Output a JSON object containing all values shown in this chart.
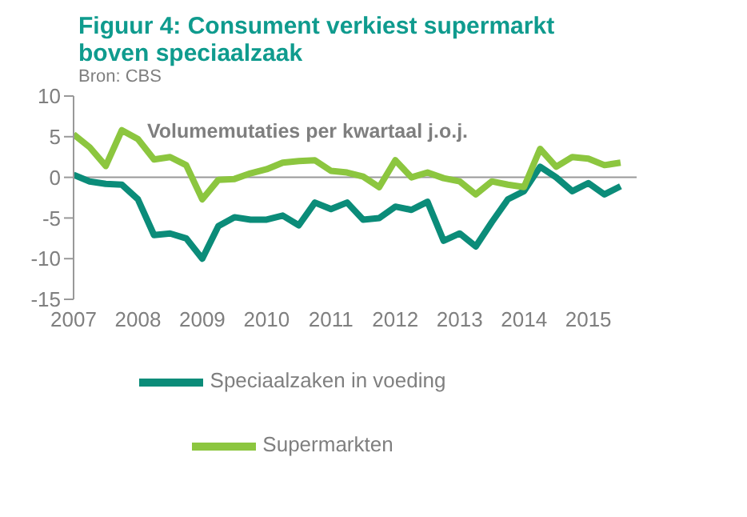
{
  "chart_data": {
    "type": "line",
    "title": "Figuur 4: Consument verkiest supermarkt boven speciaalzaak",
    "subtitle": "Volumemutaties per kwartaal j.o.j.",
    "annotations": [
      "Bron: CBS"
    ],
    "x": [
      2007,
      2007.25,
      2007.5,
      2007.75,
      2008,
      2008.25,
      2008.5,
      2008.75,
      2009,
      2009.25,
      2009.5,
      2009.75,
      2010,
      2010.25,
      2010.5,
      2010.75,
      2011,
      2011.25,
      2011.5,
      2011.75,
      2012,
      2012.25,
      2012.5,
      2012.75,
      2013,
      2013.25,
      2013.5,
      2013.75,
      2014,
      2014.25,
      2014.5,
      2014.75,
      2015,
      2015.25,
      2015.5
    ],
    "series": [
      {
        "name": "Speciaalzaken in voeding",
        "color": "#0b8c79",
        "values": [
          0.3,
          -0.5,
          -0.8,
          -0.9,
          -2.7,
          -7.1,
          -6.9,
          -7.5,
          -10,
          -6,
          -4.9,
          -5.2,
          -5.2,
          -4.7,
          -5.9,
          -3.1,
          -3.9,
          -3.1,
          -5.2,
          -5,
          -3.6,
          -4,
          -3,
          -7.8,
          -6.9,
          -8.5,
          -5.5,
          -2.7,
          -1.7,
          1.3,
          0,
          -1.7,
          -0.7,
          -2.1,
          -1.1
        ]
      },
      {
        "name": "Supermarkten",
        "color": "#8cc63f",
        "values": [
          5.3,
          3.7,
          1.4,
          5.8,
          4.7,
          2.2,
          2.5,
          1.5,
          -2.7,
          -0.3,
          -0.2,
          0.5,
          1,
          1.8,
          2,
          2.1,
          0.8,
          0.6,
          0.1,
          -1.2,
          2.1,
          0,
          0.6,
          -0.1,
          -0.5,
          -2.1,
          -0.5,
          -0.9,
          -1.2,
          3.5,
          1.3,
          2.5,
          2.3,
          1.5,
          1.8
        ]
      }
    ],
    "xlim": [
      2007,
      2015.75
    ],
    "xticks": [
      2007,
      2008,
      2009,
      2010,
      2011,
      2012,
      2013,
      2014,
      2015
    ],
    "ylim": [
      -15,
      10
    ],
    "yticks": [
      -15,
      -10,
      -5,
      0,
      5,
      10
    ],
    "ref_lines": [
      {
        "axis": "y",
        "value": 0,
        "color": "#999999"
      }
    ],
    "grid": false,
    "legend": "bottom",
    "marker": "none",
    "line_style": "solid"
  }
}
